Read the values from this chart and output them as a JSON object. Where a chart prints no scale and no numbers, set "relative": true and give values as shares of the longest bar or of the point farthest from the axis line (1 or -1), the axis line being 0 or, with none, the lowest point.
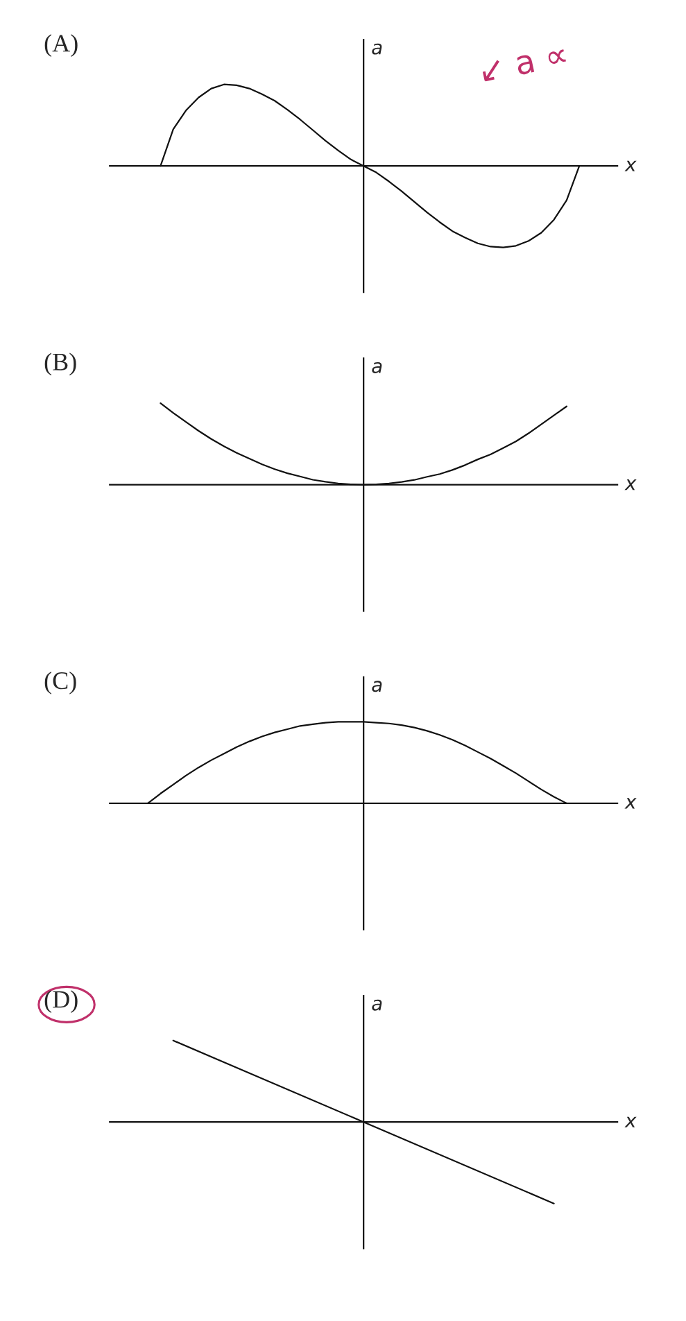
{
  "chart_data": [
    {
      "type": "line",
      "title": "(A)",
      "xlabel": "x",
      "ylabel": "a",
      "relative": true,
      "annotations": [
        "↙ a ∝"
      ],
      "categories": [
        null,
        null,
        null,
        null,
        null,
        null,
        null,
        null,
        null,
        null,
        null,
        null,
        null,
        null,
        null,
        null,
        null,
        null,
        null,
        null,
        null,
        null,
        null,
        null,
        null,
        null,
        null,
        null,
        null,
        null,
        null,
        null,
        null,
        null,
        null,
        null,
        null,
        null,
        null,
        null,
        null
      ],
      "series": [
        {
          "color": "#111111",
          "values": [
            null,
            null,
            null,
            null,
            0,
            0.45,
            0.68,
            0.84,
            0.95,
            1.0,
            0.99,
            0.95,
            0.88,
            0.8,
            0.69,
            0.57,
            0.44,
            0.31,
            0.19,
            0.08,
            0,
            -0.08,
            -0.19,
            -0.31,
            -0.44,
            -0.57,
            -0.69,
            -0.8,
            -0.88,
            -0.95,
            -0.99,
            -1.0,
            -0.98,
            -0.92,
            -0.82,
            -0.66,
            -0.42,
            0,
            null,
            null,
            null
          ]
        }
      ]
    },
    {
      "type": "line",
      "title": "(B)",
      "xlabel": "x",
      "ylabel": "a",
      "relative": true,
      "categories": [
        null,
        null,
        null,
        null,
        null,
        null,
        null,
        null,
        null,
        null,
        null,
        null,
        null,
        null,
        null,
        null,
        null,
        null,
        null,
        null,
        null,
        null,
        null,
        null,
        null,
        null,
        null,
        null,
        null,
        null,
        null,
        null,
        null,
        null,
        null,
        null,
        null,
        null,
        null,
        null,
        null
      ],
      "series": [
        {
          "color": "#111111",
          "values": [
            null,
            null,
            null,
            null,
            1.0,
            0.88,
            0.77,
            0.66,
            0.56,
            0.47,
            0.39,
            0.32,
            0.25,
            0.19,
            0.14,
            0.1,
            0.06,
            0.035,
            0.015,
            0.004,
            0,
            0.004,
            0.015,
            0.034,
            0.058,
            0.096,
            0.13,
            0.18,
            0.24,
            0.31,
            0.37,
            0.45,
            0.53,
            0.63,
            0.74,
            0.85,
            0.96,
            null,
            null,
            null,
            null
          ]
        }
      ]
    },
    {
      "type": "line",
      "title": "(C)",
      "xlabel": "x",
      "ylabel": "a",
      "relative": true,
      "categories": [
        null,
        null,
        null,
        null,
        null,
        null,
        null,
        null,
        null,
        null,
        null,
        null,
        null,
        null,
        null,
        null,
        null,
        null,
        null,
        null,
        null,
        null,
        null,
        null,
        null,
        null,
        null,
        null,
        null,
        null,
        null,
        null,
        null,
        null,
        null,
        null,
        null,
        null,
        null,
        null,
        null
      ],
      "series": [
        {
          "color": "#111111",
          "values": [
            null,
            null,
            null,
            0,
            0.12,
            0.23,
            0.34,
            0.44,
            0.53,
            0.61,
            0.69,
            0.76,
            0.82,
            0.87,
            0.91,
            0.95,
            0.97,
            0.99,
            1.0,
            1.0,
            1.0,
            0.99,
            0.98,
            0.96,
            0.93,
            0.89,
            0.84,
            0.78,
            0.71,
            0.63,
            0.55,
            0.46,
            0.37,
            0.27,
            0.17,
            0.08,
            0,
            null,
            null,
            null,
            null
          ]
        }
      ]
    },
    {
      "type": "line",
      "title": "(D)",
      "xlabel": "x",
      "ylabel": "a",
      "relative": true,
      "categories": [
        null,
        null,
        null,
        null,
        null,
        null,
        null,
        null,
        null,
        null,
        null,
        null,
        null,
        null,
        null,
        null,
        null,
        null,
        null,
        null,
        null,
        null,
        null,
        null,
        null,
        null,
        null,
        null,
        null,
        null,
        null,
        null,
        null,
        null,
        null,
        null,
        null,
        null,
        null,
        null,
        null
      ],
      "series": [
        {
          "color": "#111111",
          "values": [
            null,
            null,
            null,
            null,
            null,
            1.0,
            null,
            null,
            null,
            null,
            null,
            null,
            null,
            null,
            null,
            null,
            null,
            null,
            null,
            null,
            0,
            null,
            null,
            null,
            null,
            null,
            null,
            null,
            null,
            null,
            null,
            null,
            null,
            null,
            null,
            -1.0,
            null,
            null,
            null,
            null,
            null
          ]
        }
      ]
    }
  ]
}
